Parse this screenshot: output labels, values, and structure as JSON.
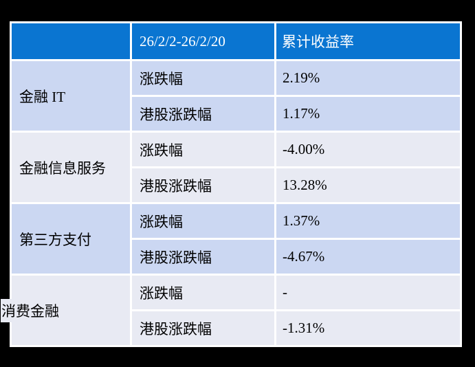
{
  "chart_data": {
    "type": "table",
    "title": "",
    "columns": [
      "",
      "26/2/2-26/2/20",
      "累计收益率"
    ],
    "groups": [
      {
        "label": "金融 IT",
        "rows": [
          {
            "metric": "涨跌幅",
            "value": "2.19%"
          },
          {
            "metric": "港股涨跌幅",
            "value": "1.17%"
          }
        ]
      },
      {
        "label": "金融信息服务",
        "rows": [
          {
            "metric": "涨跌幅",
            "value": "-4.00%"
          },
          {
            "metric": "港股涨跌幅",
            "value": "13.28%"
          }
        ]
      },
      {
        "label": "第三方支付",
        "rows": [
          {
            "metric": "涨跌幅",
            "value": "1.37%"
          },
          {
            "metric": "港股涨跌幅",
            "value": "-4.67%"
          }
        ]
      },
      {
        "label": "消费金融",
        "rows": [
          {
            "metric": "涨跌幅",
            "value": "-"
          },
          {
            "metric": "港股涨跌幅",
            "value": "-1.31%"
          }
        ]
      }
    ],
    "layout": {
      "merged_first_column": true,
      "grid": "white 3px separators between cells",
      "alternating_group_fills": true
    }
  },
  "colors": {
    "page_background": "#000000",
    "table_background": "#FFFFFF",
    "header_fill": "#0A75D1",
    "header_text": "#FFFFFF",
    "group_fill_lavender": "#CBD7F2",
    "group_fill_light": "#E8EAF3",
    "body_text": "#000000"
  }
}
